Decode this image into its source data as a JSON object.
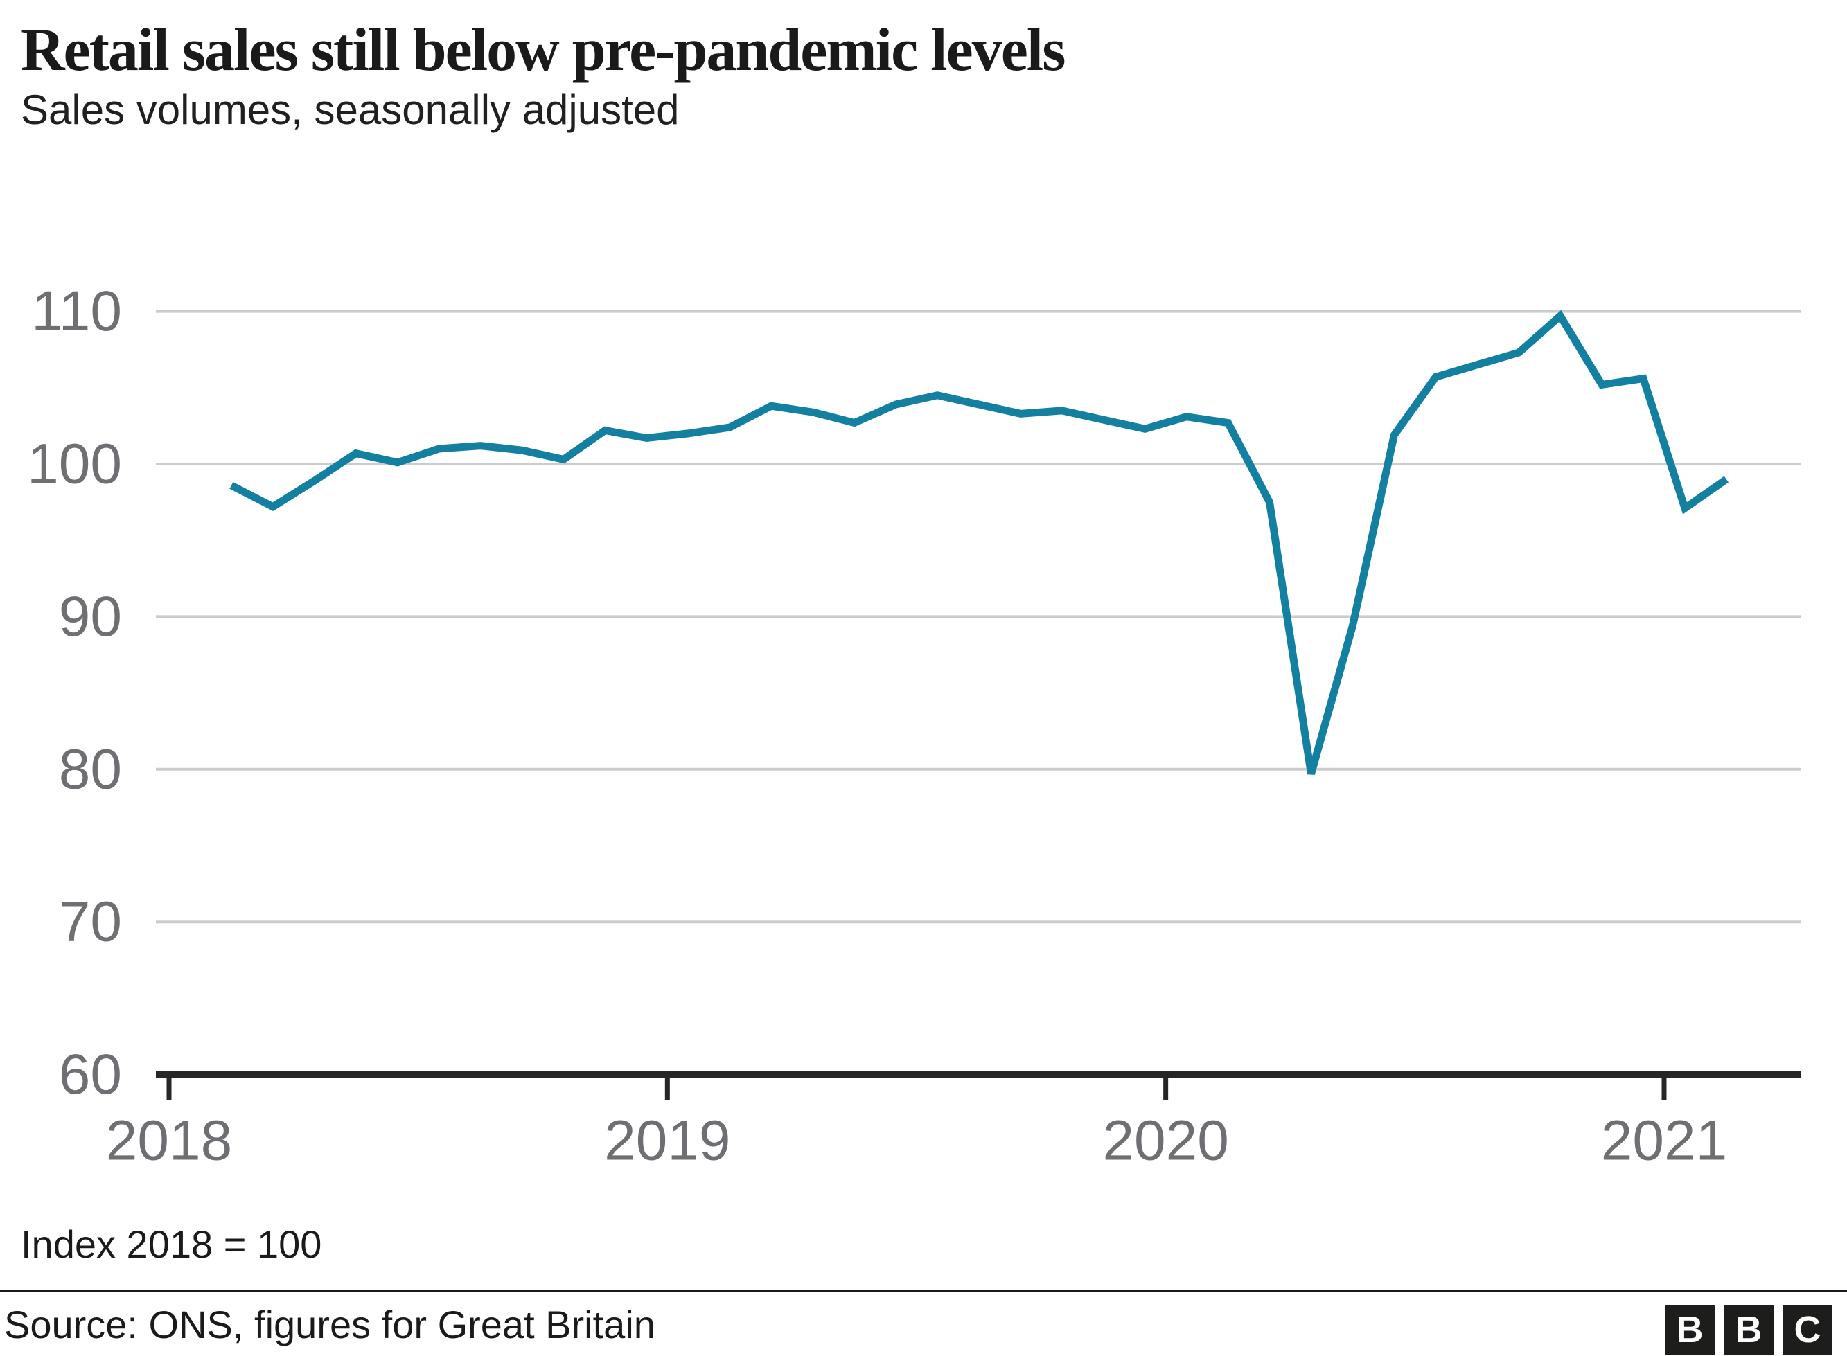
{
  "header": {
    "title": "Retail sales still below pre-pandemic levels",
    "subtitle": "Sales volumes, seasonally adjusted"
  },
  "footnote": "Index 2018 = 100",
  "source": "Source: ONS, figures for Great Britain",
  "logo": {
    "letters": [
      "B",
      "B",
      "C"
    ]
  },
  "colors": {
    "line": "#1380A1",
    "grid": "#cccccc",
    "axis": "#262626",
    "ticklabel": "#6e6e73",
    "text": "#1a1a1a",
    "logo-bg": "#1d1d1b",
    "logo-text": "#ffffff"
  },
  "chart_data": {
    "type": "line",
    "title": "Retail sales still below pre-pandemic levels",
    "subtitle": "Sales volumes, seasonally adjusted",
    "series_name": "Retail sales volume index, seasonally adjusted (Index 2018 = 100)",
    "x": [
      "2018-02",
      "2018-03",
      "2018-04",
      "2018-05",
      "2018-06",
      "2018-07",
      "2018-08",
      "2018-09",
      "2018-10",
      "2018-11",
      "2018-12",
      "2019-01",
      "2019-02",
      "2019-03",
      "2019-04",
      "2019-05",
      "2019-06",
      "2019-07",
      "2019-08",
      "2019-09",
      "2019-10",
      "2019-11",
      "2019-12",
      "2020-01",
      "2020-02",
      "2020-03",
      "2020-04",
      "2020-05",
      "2020-06",
      "2020-07",
      "2020-08",
      "2020-09",
      "2020-10",
      "2020-11",
      "2020-12",
      "2021-01",
      "2021-02"
    ],
    "values": [
      98.6,
      97.2,
      98.9,
      100.7,
      100.1,
      101.0,
      101.2,
      100.9,
      100.3,
      102.2,
      101.7,
      102.0,
      102.4,
      103.8,
      103.4,
      102.7,
      103.9,
      104.5,
      103.9,
      103.3,
      103.5,
      102.9,
      102.3,
      103.1,
      102.7,
      97.5,
      79.7,
      89.4,
      101.9,
      105.7,
      106.5,
      107.3,
      109.7,
      105.2,
      105.6,
      97.1,
      99.0
    ],
    "ylim": [
      60,
      110
    ],
    "yticks": [
      60,
      70,
      80,
      90,
      100,
      110
    ],
    "xticks": [
      2018,
      2019,
      2020,
      2021
    ],
    "xlabel": "",
    "ylabel": "",
    "grid": "horizontal",
    "legend": "none",
    "annotation": "Index 2018 = 100"
  }
}
